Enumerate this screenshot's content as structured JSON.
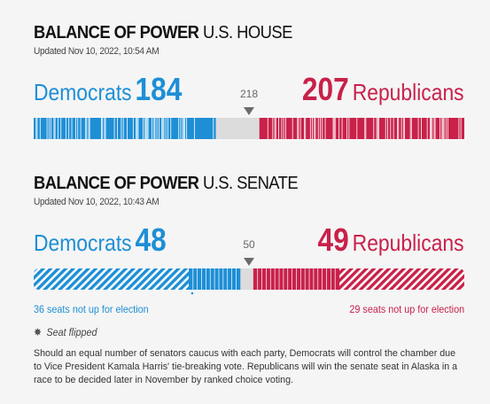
{
  "house": {
    "title_bold": "BALANCE OF POWER",
    "title_chamber": "U.S. HOUSE",
    "updated": "Updated Nov 10, 2022, 10:54 AM",
    "dem_label": "Democrats",
    "dem_seats": "184",
    "rep_seats": "207",
    "rep_label": "Republicans",
    "threshold": "218"
  },
  "senate": {
    "title_bold": "BALANCE OF POWER",
    "title_chamber": "U.S. SENATE",
    "updated": "Updated Nov 10, 2022, 10:43 AM",
    "dem_label": "Democrats",
    "dem_seats": "48",
    "rep_seats": "49",
    "rep_label": "Republicans",
    "threshold": "50",
    "dem_not_up": "36 seats not up for election",
    "rep_not_up": "29 seats not up for election"
  },
  "legend": {
    "icon": "star-icon",
    "label": "Seat flipped"
  },
  "footnote": "Should an equal number of senators caucus with each party, Democrats will control the chamber due to Vice President Kamala Harris' tie-breaking vote. Republicans will win the senate seat in Alaska in a race to be decided later in November by ranked choice voting.",
  "colors": {
    "democrat": "#1e8fd6",
    "republican": "#c8214a",
    "undecided": "#dcdcdc",
    "background": "#f5f5f5"
  },
  "chart_data": [
    {
      "type": "bar",
      "chamber": "House",
      "total_seats": 435,
      "majority": 218,
      "series": [
        {
          "name": "Democrats",
          "values": [
            184
          ]
        },
        {
          "name": "Republicans",
          "values": [
            207
          ]
        }
      ],
      "undecided": 44
    },
    {
      "type": "bar",
      "chamber": "Senate",
      "total_seats": 100,
      "majority": 50,
      "series": [
        {
          "name": "Democrats",
          "values": [
            48
          ],
          "not_up_for_election": 36
        },
        {
          "name": "Republicans",
          "values": [
            49
          ],
          "not_up_for_election": 29
        }
      ],
      "undecided": 3
    }
  ]
}
